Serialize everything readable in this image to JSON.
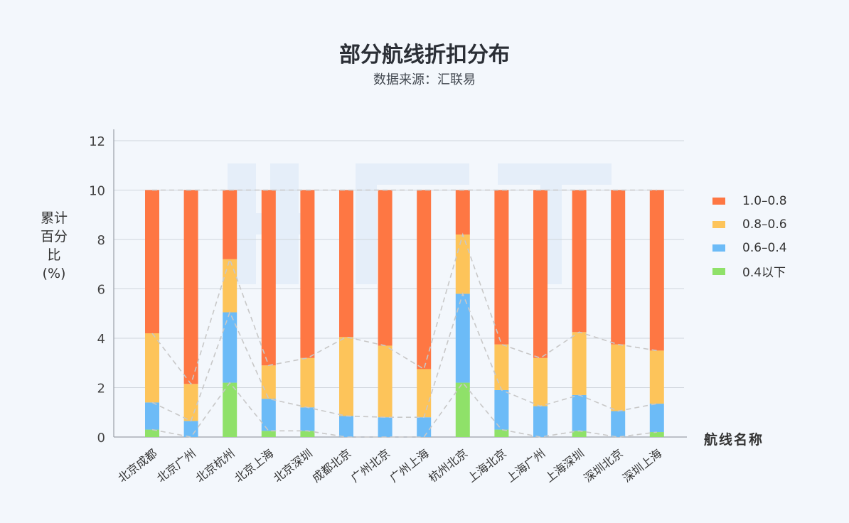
{
  "chart_data": {
    "type": "bar",
    "stacked": true,
    "title": "部分航线折扣分布",
    "subtitle": "数据来源：汇联易",
    "xlabel": "航线名称",
    "ylabel": "累计百分比(%)",
    "ylim": [
      0,
      12
    ],
    "yticks": [
      0,
      2,
      4,
      6,
      8,
      10,
      12
    ],
    "grid": true,
    "legend_position": "right",
    "categories": [
      "北京成都",
      "北京广州",
      "北京杭州",
      "北京上海",
      "北京深圳",
      "成都北京",
      "广州北京",
      "广州上海",
      "杭州北京",
      "上海北京",
      "上海广州",
      "上海深圳",
      "深圳北京",
      "深圳上海"
    ],
    "series": [
      {
        "name": "0.4以下",
        "color": "#8fe169",
        "values": [
          0.3,
          0.0,
          2.2,
          0.25,
          0.25,
          0.0,
          0.0,
          0.0,
          2.2,
          0.3,
          0.0,
          0.25,
          0.0,
          0.2
        ]
      },
      {
        "name": "0.6-0.4",
        "color": "#6cbbf7",
        "values": [
          1.1,
          0.65,
          2.85,
          1.3,
          0.95,
          0.85,
          0.8,
          0.8,
          3.6,
          1.6,
          1.25,
          1.45,
          1.05,
          1.15
        ]
      },
      {
        "name": "0.8-0.6",
        "color": "#fdc45a",
        "values": [
          2.8,
          1.5,
          2.15,
          1.35,
          2.0,
          3.2,
          2.9,
          1.95,
          2.4,
          1.85,
          1.95,
          2.55,
          2.7,
          2.15
        ]
      },
      {
        "name": "1.0-0.8",
        "color": "#fe7743",
        "values": [
          5.8,
          7.85,
          2.8,
          7.1,
          6.8,
          5.95,
          6.3,
          7.25,
          1.8,
          6.25,
          6.8,
          5.75,
          6.25,
          6.5
        ]
      }
    ]
  },
  "legend": [
    {
      "label": "1.0–0.8",
      "color": "#fe7743"
    },
    {
      "label": "0.8–0.6",
      "color": "#fdc45a"
    },
    {
      "label": "0.6–0.4",
      "color": "#6cbbf7"
    },
    {
      "label": "0.4以下",
      "color": "#8fe169"
    }
  ]
}
